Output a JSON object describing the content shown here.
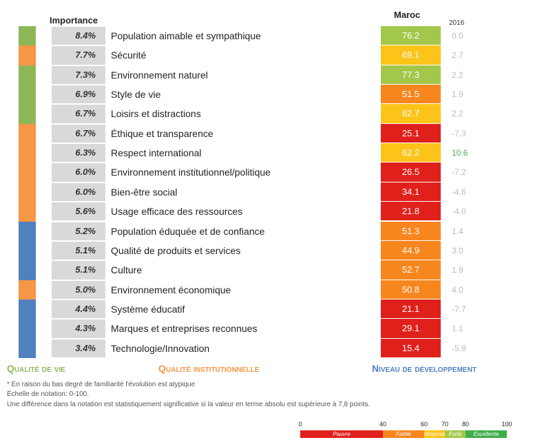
{
  "header": {
    "importance": "Importance",
    "country": "Maroc",
    "year": "2016"
  },
  "groups": [
    {
      "name": "Qualité de vie",
      "color": "#8db756"
    },
    {
      "name": "Qualité institutionnelle",
      "color": "#f79646"
    },
    {
      "name": "Niveau de développement",
      "color": "#4f81bd"
    }
  ],
  "table": {
    "rows": [
      {
        "importance": "8.4%",
        "label": "Population aimable et sympathique",
        "score": 76.2,
        "change": "0.0",
        "group": 0,
        "change_color": "#bbbbbb"
      },
      {
        "importance": "7.7%",
        "label": "Sécurité",
        "score": 69.1,
        "change": "2.7",
        "group": 1,
        "change_color": "#bbbbbb"
      },
      {
        "importance": "7.3%",
        "label": "Environnement naturel",
        "score": 77.3,
        "change": "2.2",
        "group": 0,
        "change_color": "#bbbbbb"
      },
      {
        "importance": "6.9%",
        "label": "Style de vie",
        "score": 51.5,
        "change": "1.9",
        "group": 0,
        "change_color": "#bbbbbb"
      },
      {
        "importance": "6.7%",
        "label": "Loisirs et distractions",
        "score": 62.7,
        "change": "2.2",
        "group": 0,
        "change_color": "#bbbbbb"
      },
      {
        "importance": "6.7%",
        "label": "Éthique et transparence",
        "score": 25.1,
        "change": "-7.3",
        "group": 1,
        "change_color": "#bbbbbb"
      },
      {
        "importance": "6.3%",
        "label": "Respect international",
        "score": 62.2,
        "change": "10.6",
        "group": 1,
        "change_color": "#4caf50"
      },
      {
        "importance": "6.0%",
        "label": "Environnement institutionnel/politique",
        "score": 26.5,
        "change": "-7.2",
        "group": 1,
        "change_color": "#bbbbbb"
      },
      {
        "importance": "6.0%",
        "label": "Bien-être social",
        "score": 34.1,
        "change": "-4.6",
        "group": 1,
        "change_color": "#bbbbbb"
      },
      {
        "importance": "5.6%",
        "label": "Usage efficace des ressources",
        "score": 21.8,
        "change": "-4.0",
        "group": 1,
        "change_color": "#bbbbbb"
      },
      {
        "importance": "5.2%",
        "label": "Population éduquée et de confiance",
        "score": 51.3,
        "change": "1.4",
        "group": 2,
        "change_color": "#bbbbbb"
      },
      {
        "importance": "5.1%",
        "label": "Qualité de produits et services",
        "score": 44.9,
        "change": "3.0",
        "group": 2,
        "change_color": "#bbbbbb"
      },
      {
        "importance": "5.1%",
        "label": "Culture",
        "score": 52.7,
        "change": "1.9",
        "group": 2,
        "change_color": "#bbbbbb"
      },
      {
        "importance": "5.0%",
        "label": "Environnement économique",
        "score": 50.8,
        "change": "4.0",
        "group": 1,
        "change_color": "#bbbbbb"
      },
      {
        "importance": "4.4%",
        "label": "Système éducatif",
        "score": 21.1,
        "change": "-7.7",
        "group": 2,
        "change_color": "#bbbbbb"
      },
      {
        "importance": "4.3%",
        "label": "Marques et entreprises reconnues",
        "score": 29.1,
        "change": "1.1",
        "group": 2,
        "change_color": "#bbbbbb"
      },
      {
        "importance": "3.4%",
        "label": "Technologie/Innovation",
        "score": 15.4,
        "change": "-5.9",
        "group": 2,
        "change_color": "#bbbbbb"
      }
    ]
  },
  "notes": [
    "* En raison du bas degré de familiarité l'évolution est atypique",
    "Échelle de notation: 0-100.",
    "Une différence dans la notation est statistiquement significative si la valeur en terme  absolu est supérieure à 7,8 points."
  ],
  "scale": {
    "ticks": [
      0,
      40,
      60,
      70,
      80,
      100
    ],
    "bands": [
      {
        "label": "Pauvre",
        "color": "#e0201b"
      },
      {
        "label": "Faible",
        "color": "#f7861e"
      },
      {
        "label": "Moyenne",
        "color": "#fcc419"
      },
      {
        "label": "Forte",
        "color": "#a3c74a"
      },
      {
        "label": "Excellente",
        "color": "#3fae49"
      }
    ]
  }
}
